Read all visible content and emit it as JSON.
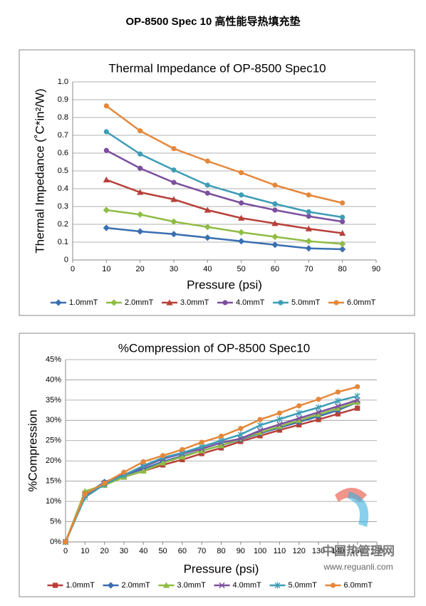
{
  "document_title": "OP-8500 Spec 10  高性能导热填充垫",
  "watermark": {
    "name": "中国热管理网",
    "url": "www.reguanli.com"
  },
  "chart_data": [
    {
      "type": "line",
      "title": "Thermal Impedance of OP-8500 Spec10",
      "x_label": "Pressure (psi)",
      "y_label": "Thermal Impedance (˚C*in²/W)",
      "x": [
        10,
        20,
        30,
        40,
        50,
        60,
        70,
        80
      ],
      "xlim": [
        0,
        90
      ],
      "xticks": [
        0,
        10,
        20,
        30,
        40,
        50,
        60,
        70,
        80,
        90
      ],
      "ylim": [
        0,
        1
      ],
      "yticks": [
        0,
        0.1,
        0.2,
        0.3,
        0.4,
        0.5,
        0.6,
        0.7,
        0.8,
        0.9,
        {
          "value": 1,
          "label": "1.0"
        }
      ],
      "grid": true,
      "legend": "bottom",
      "series": [
        {
          "name": "1.0mmT",
          "color": "#3a6fb0",
          "marker": "diamond",
          "values": [
            0.18,
            0.16,
            0.145,
            0.125,
            0.105,
            0.085,
            0.065,
            0.06
          ]
        },
        {
          "name": "2.0mmT",
          "color": "#8fbc45",
          "marker": "diamond",
          "values": [
            0.28,
            0.255,
            0.215,
            0.185,
            0.155,
            0.13,
            0.105,
            0.09
          ]
        },
        {
          "name": "3.0mmT",
          "color": "#b8403a",
          "marker": "triangle",
          "values": [
            0.45,
            0.38,
            0.34,
            0.28,
            0.235,
            0.205,
            0.175,
            0.15
          ]
        },
        {
          "name": "4.0mmT",
          "color": "#7b4f9e",
          "marker": "circle",
          "values": [
            0.615,
            0.515,
            0.435,
            0.375,
            0.32,
            0.28,
            0.245,
            0.215
          ]
        },
        {
          "name": "5.0mmT",
          "color": "#3d9db5",
          "marker": "circle",
          "values": [
            0.72,
            0.595,
            0.505,
            0.42,
            0.365,
            0.315,
            0.27,
            0.24
          ]
        },
        {
          "name": "6.0mmT",
          "color": "#e5873a",
          "marker": "circle",
          "values": [
            0.865,
            0.725,
            0.625,
            0.555,
            0.49,
            0.42,
            0.365,
            0.32
          ]
        }
      ]
    },
    {
      "type": "line",
      "title": "%Compression of OP-8500 Spec10",
      "x_label": "Pressure (psi)",
      "y_label": "%Compression",
      "x": [
        0,
        10,
        20,
        30,
        40,
        50,
        60,
        70,
        80,
        90,
        100,
        110,
        120,
        130,
        140,
        150
      ],
      "xlim": [
        0,
        160
      ],
      "xticks": [
        0,
        10,
        20,
        30,
        40,
        50,
        60,
        70,
        80,
        90,
        100,
        110,
        120,
        130,
        140,
        150,
        160
      ],
      "ylim": [
        0,
        45
      ],
      "yticks": [
        {
          "value": 0,
          "label": "0%"
        },
        {
          "value": 5,
          "label": "5%"
        },
        {
          "value": 10,
          "label": "10%"
        },
        {
          "value": 15,
          "label": "15%"
        },
        {
          "value": 20,
          "label": "20%"
        },
        {
          "value": 25,
          "label": "25%"
        },
        {
          "value": 30,
          "label": "30%"
        },
        {
          "value": 35,
          "label": "35%"
        },
        {
          "value": 40,
          "label": "40%"
        },
        {
          "value": 45,
          "label": "45%"
        }
      ],
      "grid": true,
      "legend": "bottom",
      "series": [
        {
          "name": "1.0mmT",
          "color": "#b8403a",
          "marker": "square",
          "values": [
            0,
            12,
            14.5,
            16,
            17.5,
            19,
            20.3,
            21.8,
            23.2,
            24.8,
            26.2,
            27.6,
            28.9,
            30.2,
            31.6,
            33
          ]
        },
        {
          "name": "2.0mmT",
          "color": "#3a6fb0",
          "marker": "diamond",
          "values": [
            0,
            11.5,
            14.8,
            16.5,
            18,
            19.8,
            21.2,
            22.5,
            23.8,
            25.3,
            26.8,
            28.2,
            29.6,
            31,
            32.5,
            34.5
          ]
        },
        {
          "name": "3.0mmT",
          "color": "#8fbc45",
          "marker": "triangle",
          "values": [
            0,
            12.5,
            14,
            16,
            17.5,
            19.5,
            21,
            22.5,
            23.8,
            25.5,
            27,
            28.5,
            30,
            31.5,
            33,
            34.5
          ]
        },
        {
          "name": "4.0mmT",
          "color": "#7b4f9e",
          "marker": "x",
          "values": [
            0,
            11.5,
            14.5,
            16.5,
            18.5,
            20.5,
            21.8,
            23,
            24.5,
            25.5,
            27.5,
            29,
            30.5,
            32,
            33.5,
            35
          ]
        },
        {
          "name": "5.0mmT",
          "color": "#3d9db5",
          "marker": "star",
          "values": [
            0,
            11,
            14.2,
            16.5,
            18.8,
            20.8,
            22,
            23.5,
            25,
            26.5,
            28.8,
            30.3,
            31.8,
            33.2,
            34.8,
            36
          ]
        },
        {
          "name": "6.0mmT",
          "color": "#e5873a",
          "marker": "circle",
          "values": [
            0,
            11.8,
            14.5,
            17.2,
            19.8,
            21.3,
            22.8,
            24.6,
            26.1,
            28,
            30.2,
            31.8,
            33.6,
            35.2,
            37,
            38.3
          ]
        }
      ]
    }
  ]
}
